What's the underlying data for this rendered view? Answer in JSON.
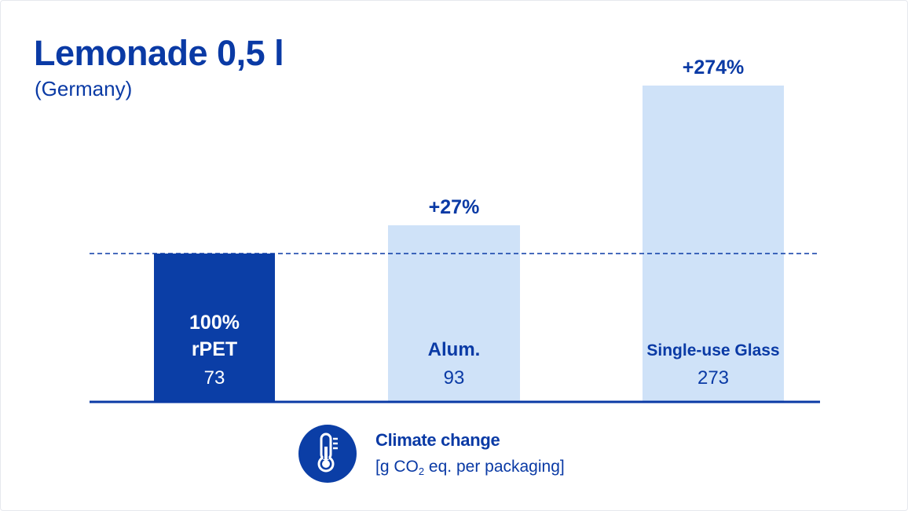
{
  "title": "Lemonade 0,5 l",
  "subtitle": "(Germany)",
  "colors": {
    "primary": "#0a3aa5",
    "bar_highlight": "#0b3ea6",
    "bar_light": "#cfe2f8",
    "white": "#ffffff"
  },
  "legend": {
    "icon": "thermometer-icon",
    "title": "Climate change",
    "unit_prefix": "[g CO",
    "unit_sub": "2",
    "unit_suffix": " eq. per packaging]"
  },
  "chart_data": {
    "type": "bar",
    "title": "Lemonade 0,5 l",
    "subtitle": "(Germany)",
    "categories": [
      "100% rPET",
      "Alum.",
      "Single-use Glass"
    ],
    "category_lines": [
      [
        "100%",
        "rPET"
      ],
      [
        "Alum."
      ],
      [
        "Single-use Glass"
      ]
    ],
    "values": [
      73,
      93,
      273
    ],
    "value_labels": [
      "73",
      "93",
      "273"
    ],
    "change_labels": [
      "",
      "+27%",
      "+274%"
    ],
    "highlighted": [
      true,
      false,
      false
    ],
    "reference_line": {
      "value": 73,
      "style": "dashed"
    },
    "ylabel": "Climate change [g CO2 eq. per packaging]",
    "xlabel": "",
    "ylim": [
      0,
      273
    ],
    "axis_scale": "non-proportional",
    "grid": false,
    "legend": "bottom-center"
  }
}
